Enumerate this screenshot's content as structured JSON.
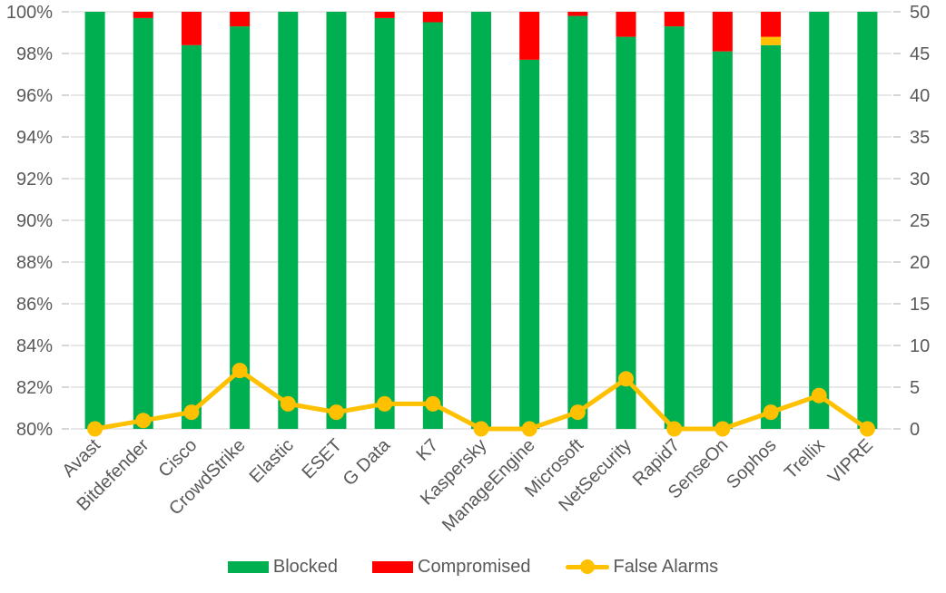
{
  "colors": {
    "blocked": "#00B050",
    "compromised": "#FF0000",
    "false_alarms": "#FFC000",
    "gridline": "#D9D9D9",
    "tick": "#BFBFBF",
    "axis_text": "#595959",
    "background": "#FFFFFF"
  },
  "chart_data": {
    "type": "stacked-bar+line",
    "title": "",
    "categories": [
      "Avast",
      "Bitdefender",
      "Cisco",
      "CrowdStrike",
      "Elastic",
      "ESET",
      "G Data",
      "K7",
      "Kaspersky",
      "ManageEngine",
      "Microsoft",
      "NetSecurity",
      "Rapid7",
      "SenseOn",
      "Sophos",
      "Trellix",
      "VIPRE"
    ],
    "series": [
      {
        "name": "Blocked",
        "type": "bar",
        "axis": "left",
        "color_key": "blocked",
        "values": [
          100,
          99.7,
          98.4,
          99.3,
          100,
          100,
          99.7,
          99.5,
          100,
          97.7,
          99.8,
          98.8,
          99.3,
          98.1,
          98.4,
          100,
          100
        ]
      },
      {
        "name": "(unlabeled yellow segment)",
        "type": "bar",
        "axis": "left",
        "color_key": "false_alarms",
        "values": [
          0,
          0,
          0,
          0,
          0,
          0,
          0,
          0,
          0,
          0,
          0,
          0,
          0,
          0,
          0.4,
          0,
          0
        ]
      },
      {
        "name": "Compromised",
        "type": "bar",
        "axis": "left",
        "color_key": "compromised",
        "values": [
          0,
          0.3,
          1.6,
          0.7,
          0,
          0,
          0.3,
          0.5,
          0,
          2.3,
          0.2,
          1.2,
          0.7,
          1.9,
          1.2,
          0,
          0
        ]
      },
      {
        "name": "False Alarms",
        "type": "line",
        "axis": "right",
        "color_key": "false_alarms",
        "values": [
          0,
          1,
          2,
          7,
          3,
          2,
          3,
          3,
          0,
          0,
          2,
          6,
          0,
          0,
          2,
          4,
          0
        ]
      }
    ],
    "left_axis": {
      "min": 80,
      "max": 100,
      "step": 2,
      "format": "percent",
      "labels": [
        "100%",
        "98%",
        "96%",
        "94%",
        "92%",
        "90%",
        "88%",
        "86%",
        "84%",
        "82%",
        "80%"
      ]
    },
    "right_axis": {
      "min": 0,
      "max": 50,
      "step": 5,
      "labels": [
        "50",
        "45",
        "40",
        "35",
        "30",
        "25",
        "20",
        "15",
        "10",
        "5",
        "0"
      ]
    },
    "grid": true,
    "legend_position": "bottom",
    "legend": [
      "Blocked",
      "Compromised",
      "False Alarms"
    ]
  }
}
